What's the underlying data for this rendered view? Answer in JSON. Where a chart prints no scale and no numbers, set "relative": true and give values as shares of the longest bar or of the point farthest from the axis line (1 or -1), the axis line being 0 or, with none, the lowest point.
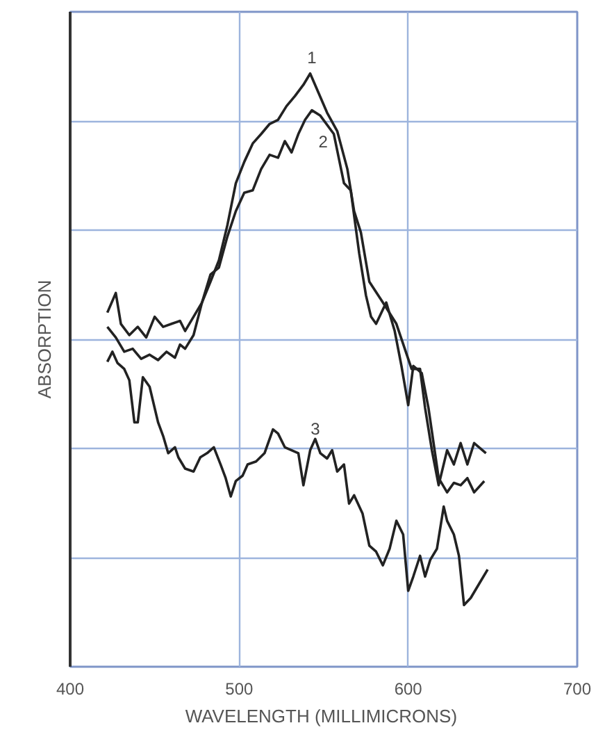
{
  "chart_data": {
    "type": "line",
    "relative": true,
    "xlabel": "WAVELENGTH  (MILLIMICRONS)",
    "ylabel": "ABSORPTION",
    "xlim": [
      400,
      700
    ],
    "xticks": [
      400,
      500,
      600,
      700
    ],
    "grid": true,
    "marker": "none",
    "line_style": "solid",
    "annotations": [
      {
        "text": "1",
        "x": 543,
        "y": 1.01
      },
      {
        "text": "2",
        "x": 548,
        "y": 0.929
      },
      {
        "text": "3",
        "x": 545,
        "y": 0.384
      }
    ],
    "series": [
      {
        "color": "#222222",
        "x": [
          422,
          427,
          430,
          435,
          440,
          445,
          450,
          455,
          460,
          465,
          468,
          473,
          478,
          483,
          488,
          493,
          498,
          503,
          508,
          513,
          518,
          523,
          528,
          533,
          538,
          542,
          552,
          558,
          564,
          568,
          572,
          577,
          585,
          593,
          602,
          607,
          610,
          614,
          618,
          623,
          627,
          631,
          635,
          639,
          646
        ],
        "values": [
          0.597,
          0.63,
          0.578,
          0.559,
          0.573,
          0.555,
          0.59,
          0.573,
          0.578,
          0.583,
          0.566,
          0.59,
          0.614,
          0.649,
          0.685,
          0.744,
          0.815,
          0.851,
          0.882,
          0.898,
          0.915,
          0.922,
          0.945,
          0.962,
          0.981,
          1.0,
          0.934,
          0.903,
          0.839,
          0.768,
          0.732,
          0.649,
          0.614,
          0.578,
          0.502,
          0.502,
          0.436,
          0.365,
          0.306,
          0.365,
          0.341,
          0.377,
          0.341,
          0.377,
          0.36
        ]
      },
      {
        "color": "#222222",
        "x": [
          422,
          427,
          432,
          437,
          442,
          447,
          452,
          457,
          462,
          465,
          468,
          473,
          478,
          483,
          488,
          493,
          498,
          503,
          508,
          513,
          518,
          523,
          527,
          531,
          535,
          539,
          543,
          548,
          556,
          562,
          566,
          571,
          575,
          578,
          581,
          587,
          592,
          596,
          600,
          603,
          608,
          612,
          615,
          618,
          623,
          627,
          631,
          635,
          639,
          645
        ],
        "values": [
          0.573,
          0.555,
          0.531,
          0.536,
          0.519,
          0.526,
          0.517,
          0.531,
          0.521,
          0.543,
          0.536,
          0.559,
          0.614,
          0.661,
          0.673,
          0.725,
          0.768,
          0.799,
          0.803,
          0.839,
          0.863,
          0.858,
          0.886,
          0.867,
          0.898,
          0.922,
          0.938,
          0.929,
          0.898,
          0.815,
          0.803,
          0.697,
          0.626,
          0.59,
          0.578,
          0.614,
          0.566,
          0.507,
          0.441,
          0.507,
          0.495,
          0.436,
          0.377,
          0.318,
          0.294,
          0.31,
          0.306,
          0.318,
          0.294,
          0.313
        ]
      },
      {
        "color": "#222222",
        "x": [
          422,
          425,
          428,
          432,
          435,
          438,
          440,
          443,
          447,
          452,
          455,
          458,
          462,
          464,
          468,
          473,
          477,
          481,
          485,
          489,
          492,
          495,
          498,
          502,
          505,
          510,
          515,
          520,
          523,
          527,
          531,
          535,
          538,
          542,
          545,
          548,
          552,
          555,
          558,
          562,
          565,
          568,
          573,
          577,
          581,
          585,
          589,
          593,
          597,
          600,
          603,
          607,
          610,
          613,
          617,
          621,
          623,
          627,
          630,
          633,
          637,
          642,
          647
        ],
        "values": [
          0.514,
          0.531,
          0.512,
          0.502,
          0.483,
          0.412,
          0.412,
          0.488,
          0.472,
          0.412,
          0.389,
          0.36,
          0.37,
          0.353,
          0.334,
          0.329,
          0.353,
          0.36,
          0.37,
          0.341,
          0.318,
          0.287,
          0.313,
          0.322,
          0.341,
          0.346,
          0.36,
          0.4,
          0.393,
          0.37,
          0.365,
          0.36,
          0.306,
          0.365,
          0.384,
          0.36,
          0.351,
          0.365,
          0.329,
          0.341,
          0.275,
          0.289,
          0.258,
          0.204,
          0.194,
          0.171,
          0.199,
          0.246,
          0.223,
          0.128,
          0.152,
          0.187,
          0.152,
          0.18,
          0.199,
          0.27,
          0.246,
          0.223,
          0.187,
          0.104,
          0.116,
          0.14,
          0.164
        ]
      }
    ]
  }
}
